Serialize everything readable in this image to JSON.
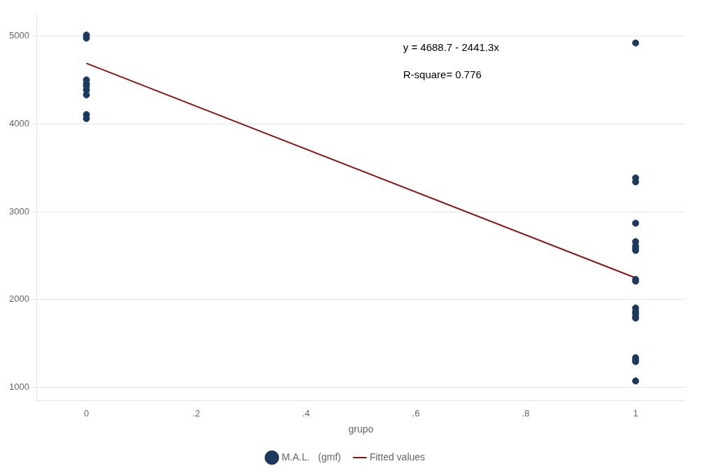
{
  "chart_data": {
    "type": "scatter",
    "xlabel": "grupo",
    "annotations": [
      "y = 4688.7 - 2441.3x",
      "R-square= 0.776"
    ],
    "xlim": [
      -0.09,
      1.09
    ],
    "xticks": [
      0,
      {
        "value": 0.2,
        "label": ".2"
      },
      {
        "value": 0.4,
        "label": ".4"
      },
      {
        "value": 0.6,
        "label": ".6"
      },
      {
        "value": 0.8,
        "label": ".8"
      },
      1
    ],
    "ylim": [
      850,
      5250
    ],
    "yticks": [
      1000,
      2000,
      3000,
      4000,
      5000
    ],
    "grid": "y",
    "legend": "bottom",
    "series": [
      {
        "name": "M.A.L.   (gmf)",
        "type": "scatter",
        "marker": "circle",
        "color": "#1c3a5e",
        "x": [
          0,
          0,
          0,
          0,
          0,
          0,
          0,
          0,
          0,
          1,
          1,
          1,
          1,
          1,
          1,
          1,
          1,
          1,
          1,
          1,
          1,
          1,
          1,
          1,
          1,
          1,
          1,
          1
        ],
        "values": [
          5010,
          4975,
          4500,
          4455,
          4430,
          4385,
          4330,
          4105,
          4060,
          4920,
          3385,
          3340,
          2870,
          2660,
          2610,
          2585,
          2560,
          2230,
          2210,
          1905,
          1865,
          1840,
          1805,
          1790,
          1340,
          1315,
          1295,
          1075
        ]
      },
      {
        "name": "Fitted values",
        "type": "line",
        "line_style": "solid",
        "color": "#8b1414",
        "x": [
          0,
          1
        ],
        "values": [
          4688.7,
          2247.4
        ]
      }
    ]
  }
}
